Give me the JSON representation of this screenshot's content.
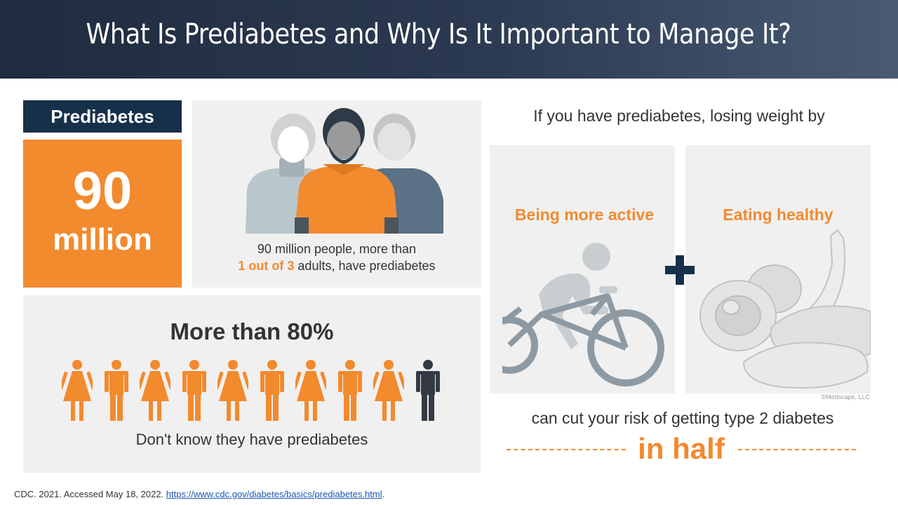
{
  "header": {
    "title": "What Is Prediabetes and Why Is It Important to Manage It?"
  },
  "prediabetes": {
    "label": "Prediabetes",
    "number": "90",
    "unit": "million"
  },
  "people": {
    "caption_line1": "90 million people, more than",
    "caption_highlight": "1 out of 3",
    "caption_line2_rest": " adults, have prediabetes"
  },
  "unaware": {
    "title": "More than 80%",
    "caption": "Don't know they have prediabetes",
    "figures_total": 10,
    "figures_highlighted": 9
  },
  "weight": {
    "intro": "If you have prediabetes, losing weight by",
    "active_label": "Being more active",
    "healthy_label": "Eating healthy",
    "credit": "©Medscape, LLC",
    "result": "can cut your risk of getting type 2 diabetes",
    "emphasis": "in half"
  },
  "source": {
    "text": "CDC. 2021. Accessed May 18, 2022. ",
    "link": "https://www.cdc.gov/diabetes/basics/prediabetes.html",
    "trailing": "."
  },
  "colors": {
    "orange": "#f28a2e",
    "navy": "#16304a",
    "dark_figure": "#333a44",
    "panel": "#f0f0f0"
  }
}
